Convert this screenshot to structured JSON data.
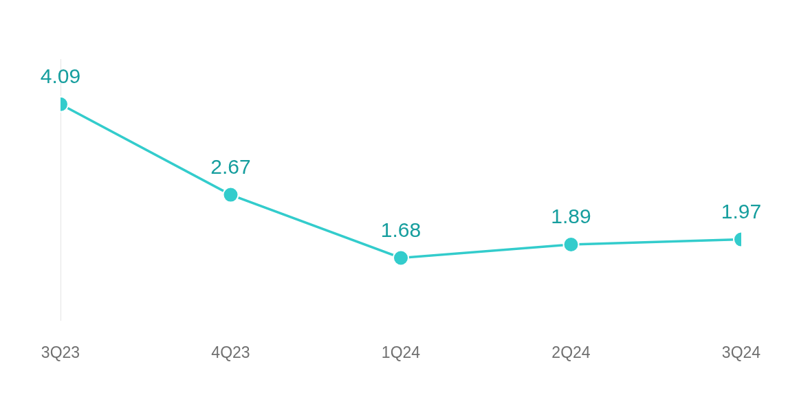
{
  "chart_data": {
    "type": "line",
    "categories": [
      "3Q23",
      "4Q23",
      "1Q24",
      "2Q24",
      "3Q24"
    ],
    "values": [
      4.09,
      2.67,
      1.68,
      1.89,
      1.97
    ],
    "color": "#33cccc",
    "ylim": [
      0.7,
      4.8
    ],
    "grid": false,
    "data_labels": true,
    "tick_labels": "x",
    "marker": "circle"
  }
}
